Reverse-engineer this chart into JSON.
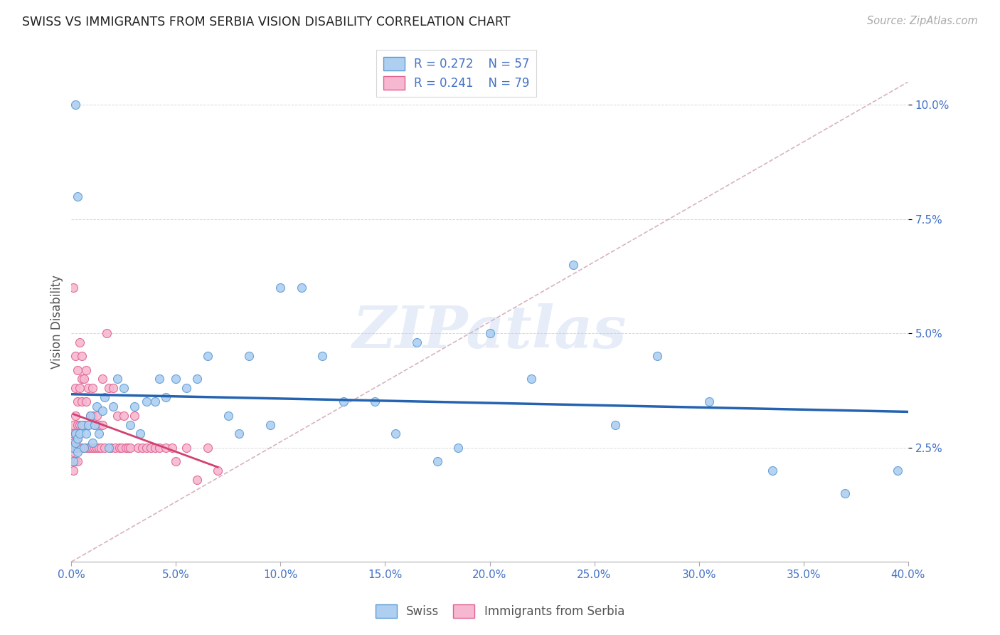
{
  "title": "SWISS VS IMMIGRANTS FROM SERBIA VISION DISABILITY CORRELATION CHART",
  "source": "Source: ZipAtlas.com",
  "ylabel": "Vision Disability",
  "legend_swiss_label": "Swiss",
  "legend_serbia_label": "Immigrants from Serbia",
  "legend_swiss_R": "R = 0.272",
  "legend_swiss_N": "N = 57",
  "legend_serbia_R": "R = 0.241",
  "legend_serbia_N": "N = 79",
  "watermark": "ZIPatlas",
  "swiss_color": "#aecff0",
  "swiss_edge_color": "#5b9bd5",
  "serbia_color": "#f5b8d0",
  "serbia_edge_color": "#e06090",
  "swiss_trend_color": "#2563b0",
  "serbia_trend_color": "#d44070",
  "diag_line_color": "#d0a0b0",
  "background_color": "#ffffff",
  "grid_color": "#d8d8d8",
  "xlim": [
    0.0,
    0.4
  ],
  "ylim": [
    0.0,
    0.105
  ],
  "yticks": [
    0.025,
    0.05,
    0.075,
    0.1
  ],
  "ytick_labels": [
    "2.5%",
    "5.0%",
    "7.5%",
    "10.0%"
  ],
  "xticks": [
    0.0,
    0.05,
    0.1,
    0.15,
    0.2,
    0.25,
    0.3,
    0.35,
    0.4
  ],
  "xtick_labels": [
    "0.0%",
    "5.0%",
    "10.0%",
    "15.0%",
    "20.0%",
    "25.0%",
    "30.0%",
    "35.0%",
    "40.0%"
  ],
  "swiss_x": [
    0.001,
    0.001,
    0.002,
    0.002,
    0.003,
    0.003,
    0.004,
    0.005,
    0.006,
    0.007,
    0.008,
    0.009,
    0.01,
    0.011,
    0.012,
    0.013,
    0.015,
    0.016,
    0.018,
    0.02,
    0.022,
    0.025,
    0.028,
    0.03,
    0.033,
    0.036,
    0.04,
    0.042,
    0.045,
    0.05,
    0.055,
    0.06,
    0.065,
    0.075,
    0.08,
    0.085,
    0.095,
    0.1,
    0.11,
    0.12,
    0.13,
    0.145,
    0.155,
    0.165,
    0.175,
    0.185,
    0.2,
    0.22,
    0.24,
    0.26,
    0.28,
    0.305,
    0.335,
    0.37,
    0.395,
    0.002,
    0.003
  ],
  "swiss_y": [
    0.025,
    0.022,
    0.028,
    0.026,
    0.024,
    0.027,
    0.028,
    0.03,
    0.025,
    0.028,
    0.03,
    0.032,
    0.026,
    0.03,
    0.034,
    0.028,
    0.033,
    0.036,
    0.025,
    0.034,
    0.04,
    0.038,
    0.03,
    0.034,
    0.028,
    0.035,
    0.035,
    0.04,
    0.036,
    0.04,
    0.038,
    0.04,
    0.045,
    0.032,
    0.028,
    0.045,
    0.03,
    0.06,
    0.06,
    0.045,
    0.035,
    0.035,
    0.028,
    0.048,
    0.022,
    0.025,
    0.05,
    0.04,
    0.065,
    0.03,
    0.045,
    0.035,
    0.02,
    0.015,
    0.02,
    0.1,
    0.08
  ],
  "serbia_x": [
    0.001,
    0.001,
    0.001,
    0.001,
    0.001,
    0.001,
    0.002,
    0.002,
    0.002,
    0.002,
    0.002,
    0.002,
    0.002,
    0.003,
    0.003,
    0.003,
    0.003,
    0.003,
    0.003,
    0.004,
    0.004,
    0.004,
    0.004,
    0.005,
    0.005,
    0.005,
    0.005,
    0.005,
    0.006,
    0.006,
    0.006,
    0.007,
    0.007,
    0.007,
    0.008,
    0.008,
    0.008,
    0.009,
    0.009,
    0.01,
    0.01,
    0.01,
    0.011,
    0.011,
    0.012,
    0.012,
    0.013,
    0.013,
    0.014,
    0.015,
    0.015,
    0.016,
    0.017,
    0.018,
    0.019,
    0.02,
    0.021,
    0.022,
    0.023,
    0.024,
    0.025,
    0.026,
    0.027,
    0.028,
    0.03,
    0.032,
    0.034,
    0.036,
    0.038,
    0.04,
    0.042,
    0.045,
    0.048,
    0.05,
    0.055,
    0.06,
    0.065,
    0.07,
    0.001
  ],
  "serbia_y": [
    0.024,
    0.026,
    0.022,
    0.02,
    0.028,
    0.03,
    0.025,
    0.028,
    0.022,
    0.025,
    0.032,
    0.038,
    0.045,
    0.025,
    0.027,
    0.03,
    0.035,
    0.042,
    0.022,
    0.025,
    0.03,
    0.038,
    0.048,
    0.025,
    0.03,
    0.035,
    0.04,
    0.045,
    0.025,
    0.03,
    0.04,
    0.025,
    0.035,
    0.042,
    0.025,
    0.03,
    0.038,
    0.025,
    0.032,
    0.025,
    0.032,
    0.038,
    0.025,
    0.03,
    0.025,
    0.032,
    0.025,
    0.03,
    0.025,
    0.03,
    0.04,
    0.025,
    0.05,
    0.038,
    0.025,
    0.038,
    0.025,
    0.032,
    0.025,
    0.025,
    0.032,
    0.025,
    0.025,
    0.025,
    0.032,
    0.025,
    0.025,
    0.025,
    0.025,
    0.025,
    0.025,
    0.025,
    0.025,
    0.022,
    0.025,
    0.018,
    0.025,
    0.02,
    0.06
  ]
}
